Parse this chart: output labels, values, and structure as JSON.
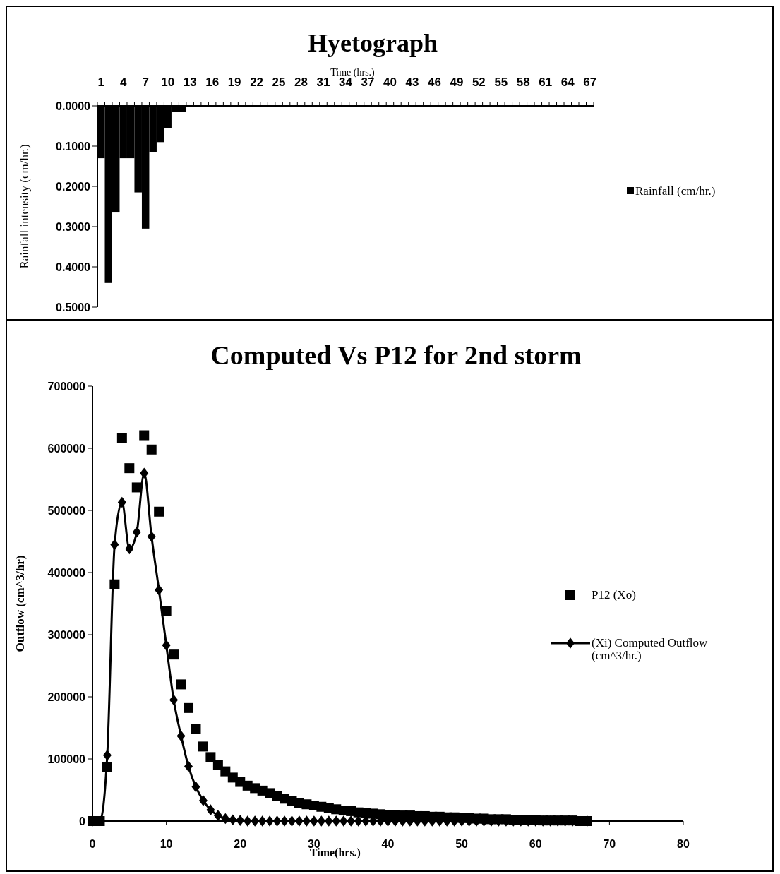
{
  "chart_data": [
    {
      "type": "bar",
      "title": "Hyetograph",
      "xlabel": "Time (hrs.)",
      "ylabel": "Rainfall intensity (cm/hr.)",
      "legend": "right",
      "categories": [
        "1",
        null,
        null,
        "4",
        null,
        null,
        "7",
        null,
        null,
        "10",
        null,
        null,
        "13",
        null,
        null,
        "16",
        null,
        null,
        "19",
        null,
        null,
        "22",
        null,
        null,
        "25",
        null,
        null,
        "28",
        null,
        null,
        "31",
        null,
        null,
        "34",
        null,
        null,
        "37",
        null,
        null,
        "40",
        null,
        null,
        "43",
        null,
        null,
        "46",
        null,
        null,
        "49",
        null,
        null,
        "52",
        null,
        null,
        "55",
        null,
        null,
        "58",
        null,
        null,
        "61",
        null,
        null,
        "64",
        null,
        null,
        "67"
      ],
      "series": [
        {
          "name": "Rainfall (cm/hr.)",
          "color": "#000000",
          "values": [
            0.13,
            0.44,
            0.265,
            0.13,
            0.13,
            0.215,
            0.305,
            0.115,
            0.09,
            0.055,
            0.015,
            0.015,
            0,
            0,
            0,
            0,
            0,
            0,
            0,
            0,
            0,
            0,
            0,
            0,
            0,
            0,
            0,
            0,
            0,
            0,
            0,
            0,
            0,
            0,
            0,
            0,
            0,
            0,
            0,
            0,
            0,
            0,
            0,
            0,
            0,
            0,
            0,
            0,
            0,
            0,
            0,
            0,
            0,
            0,
            0,
            0,
            0,
            0,
            0,
            0,
            0,
            0,
            0,
            0,
            0,
            0,
            0
          ]
        }
      ],
      "ylim": [
        0.5,
        0
      ],
      "yticks": [
        {
          "value": 0,
          "label": "0.0000"
        },
        {
          "value": 0.1,
          "label": "0.1000"
        },
        {
          "value": 0.2,
          "label": "0.2000"
        },
        {
          "value": 0.3,
          "label": "0.3000"
        },
        {
          "value": 0.4,
          "label": "0.4000"
        },
        {
          "value": 0.5,
          "label": "0.5000"
        }
      ]
    },
    {
      "type": "line",
      "title": "Computed Vs P12 for 2nd storm",
      "xlabel": "Time(hrs.)",
      "ylabel": "Outflow (cm^3/hr)",
      "legend": "right",
      "x": [
        0,
        1,
        2,
        3,
        4,
        5,
        6,
        7,
        8,
        9,
        10,
        11,
        12,
        13,
        14,
        15,
        16,
        17,
        18,
        19,
        20,
        21,
        22,
        23,
        24,
        25,
        26,
        27,
        28,
        29,
        30,
        31,
        32,
        33,
        34,
        35,
        36,
        37,
        38,
        39,
        40,
        41,
        42,
        43,
        44,
        45,
        46,
        47,
        48,
        49,
        50,
        51,
        52,
        53,
        54,
        55,
        56,
        57,
        58,
        59,
        60,
        61,
        62,
        63,
        64,
        65,
        66,
        67
      ],
      "series": [
        {
          "name": "P12 (Xo)",
          "type": "scatter",
          "marker": "square",
          "color": "#000000",
          "values": [
            0,
            0,
            87000,
            381000,
            617000,
            568000,
            537000,
            621000,
            598000,
            498000,
            338000,
            268000,
            220000,
            182000,
            148000,
            120000,
            103000,
            90000,
            80000,
            70000,
            63000,
            57000,
            53000,
            49000,
            45000,
            40000,
            36000,
            32000,
            29000,
            27000,
            25000,
            23000,
            21000,
            19000,
            17000,
            16000,
            14000,
            13000,
            12000,
            11000,
            10000,
            10000,
            9000,
            9000,
            8000,
            8000,
            7000,
            7000,
            6000,
            6000,
            5000,
            5000,
            4000,
            4000,
            3000,
            3000,
            3000,
            2000,
            2000,
            2000,
            2000,
            1000,
            1000,
            1000,
            1000,
            1000,
            0,
            0
          ]
        },
        {
          "name": "(Xi) Computed Outflow (cm^3/hr.)",
          "type": "line",
          "marker": "diamond",
          "color": "#000000",
          "values": [
            0,
            0,
            106000,
            445000,
            513000,
            438000,
            465000,
            560000,
            458000,
            372000,
            283000,
            195000,
            137000,
            88000,
            55000,
            33000,
            18000,
            9000,
            4000,
            2000,
            1000,
            0,
            0,
            0,
            0,
            0,
            0,
            0,
            0,
            0,
            0,
            0,
            0,
            0,
            0,
            0,
            0,
            0,
            0,
            0,
            0,
            0,
            0,
            0,
            0,
            0,
            0,
            0,
            0,
            0,
            0,
            0,
            0,
            0,
            0,
            0,
            0,
            0,
            0,
            0,
            0,
            0,
            0,
            0,
            0,
            0,
            0,
            0
          ]
        }
      ],
      "xlim": [
        0,
        80
      ],
      "xticks": [
        0,
        10,
        20,
        30,
        40,
        50,
        60,
        70,
        80
      ],
      "ylim": [
        0,
        700000
      ],
      "yticks": [
        0,
        100000,
        200000,
        300000,
        400000,
        500000,
        600000,
        700000
      ]
    }
  ]
}
